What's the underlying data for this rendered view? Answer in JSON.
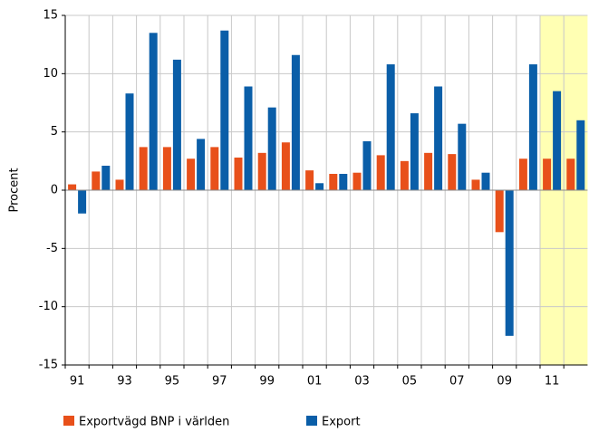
{
  "chart_data": {
    "type": "bar",
    "y_label": "Procent",
    "categories": [
      "91",
      null,
      "93",
      null,
      "95",
      null,
      "97",
      null,
      "99",
      null,
      "01",
      null,
      "03",
      null,
      "05",
      null,
      "07",
      null,
      "09",
      null,
      "11",
      null
    ],
    "series": [
      {
        "name": "Exportvägd BNP i världen",
        "color": "#e8501a",
        "values": [
          0.5,
          1.6,
          0.9,
          3.7,
          3.7,
          2.7,
          3.7,
          2.8,
          3.2,
          4.1,
          1.7,
          1.4,
          1.5,
          3.0,
          2.5,
          3.2,
          3.1,
          0.9,
          -3.6,
          2.7,
          2.7,
          2.7
        ]
      },
      {
        "name": "Export",
        "color": "#0a5ea8",
        "values": [
          -2.0,
          2.1,
          8.3,
          13.5,
          11.2,
          4.4,
          13.7,
          8.9,
          7.1,
          11.6,
          0.6,
          1.4,
          4.2,
          10.8,
          6.6,
          8.9,
          5.7,
          1.5,
          -12.5,
          10.8,
          8.5,
          6.0
        ]
      }
    ],
    "ylim": [
      -15,
      15
    ],
    "yticks": [
      -15,
      -10,
      -5,
      0,
      5,
      10,
      15
    ],
    "grid": true,
    "shade": {
      "from_category": 20,
      "color": "#ffffb3"
    }
  }
}
